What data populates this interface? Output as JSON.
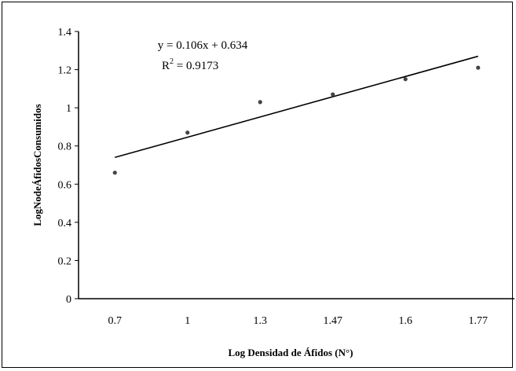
{
  "chart_data": {
    "type": "scatter",
    "xlabel": "Log Densidad de Áfidos (N°)",
    "ylabel": "LogNodeÁfidosConsumidos",
    "categories": [
      "0.7",
      "1",
      "1.3",
      "1.47",
      "1.6",
      "1.77"
    ],
    "y_ticks": [
      "0",
      "0.2",
      "0.4",
      "0.6",
      "0.8",
      "1",
      "1.2",
      "1.4"
    ],
    "ylim": [
      0,
      1.4
    ],
    "points": [
      {
        "category": "0.7",
        "y": 0.66
      },
      {
        "category": "1",
        "y": 0.87
      },
      {
        "category": "1.3",
        "y": 1.03
      },
      {
        "category": "1.47",
        "y": 1.07
      },
      {
        "category": "1.6",
        "y": 1.15
      },
      {
        "category": "1.77",
        "y": 1.21
      }
    ],
    "trendline": {
      "type": "linear",
      "equation": "y = 0.106x + 0.634",
      "r2_prefix": "R",
      "r2_sup": "2",
      "r2_value": " = 0.9173",
      "slope": 0.106,
      "intercept": 0.634
    },
    "grid": false,
    "legend": "none"
  }
}
